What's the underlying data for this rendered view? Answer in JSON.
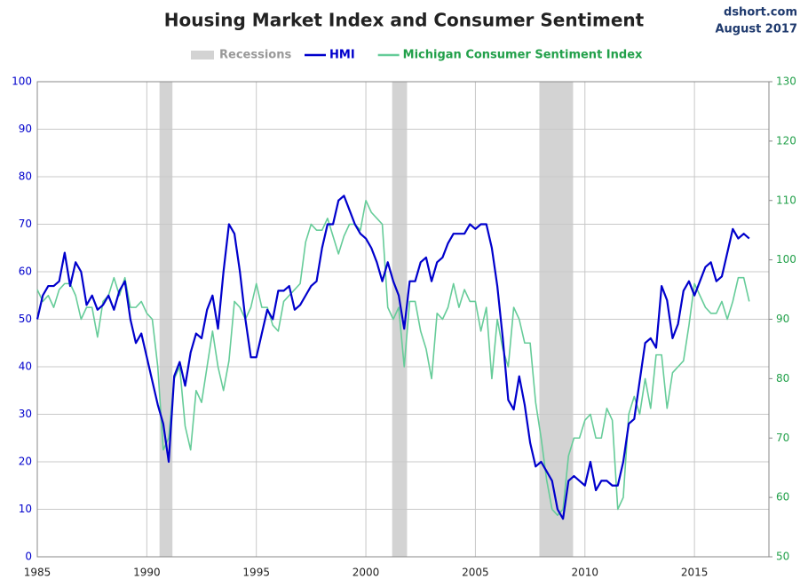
{
  "chart_data": {
    "type": "line",
    "title": "Housing Market Index and Consumer Sentiment",
    "source": "dshort.com",
    "date": "August 2017",
    "x": [
      1985,
      1985.25,
      1985.5,
      1985.75,
      1986,
      1986.25,
      1986.5,
      1986.75,
      1987,
      1987.25,
      1987.5,
      1987.75,
      1988,
      1988.25,
      1988.5,
      1988.75,
      1989,
      1989.25,
      1989.5,
      1989.75,
      1990,
      1990.25,
      1990.5,
      1990.75,
      1991,
      1991.25,
      1991.5,
      1991.75,
      1992,
      1992.25,
      1992.5,
      1992.75,
      1993,
      1993.25,
      1993.5,
      1993.75,
      1994,
      1994.25,
      1994.5,
      1994.75,
      1995,
      1995.25,
      1995.5,
      1995.75,
      1996,
      1996.25,
      1996.5,
      1996.75,
      1997,
      1997.25,
      1997.5,
      1997.75,
      1998,
      1998.25,
      1998.5,
      1998.75,
      1999,
      1999.25,
      1999.5,
      1999.75,
      2000,
      2000.25,
      2000.5,
      2000.75,
      2001,
      2001.25,
      2001.5,
      2001.75,
      2002,
      2002.25,
      2002.5,
      2002.75,
      2003,
      2003.25,
      2003.5,
      2003.75,
      2004,
      2004.25,
      2004.5,
      2004.75,
      2005,
      2005.25,
      2005.5,
      2005.75,
      2006,
      2006.25,
      2006.5,
      2006.75,
      2007,
      2007.25,
      2007.5,
      2007.75,
      2008,
      2008.25,
      2008.5,
      2008.75,
      2009,
      2009.25,
      2009.5,
      2009.75,
      2010,
      2010.25,
      2010.5,
      2010.75,
      2011,
      2011.25,
      2011.5,
      2011.75,
      2012,
      2012.25,
      2012.5,
      2012.75,
      2013,
      2013.25,
      2013.5,
      2013.75,
      2014,
      2014.25,
      2014.5,
      2014.75,
      2015,
      2015.25,
      2015.5,
      2015.75,
      2016,
      2016.25,
      2016.5,
      2016.75,
      2017,
      2017.25,
      2017.5
    ],
    "recessions": {
      "name": "Recessions",
      "color": "#d3d3d3",
      "spans": [
        [
          1990.58,
          1991.17
        ],
        [
          2001.2,
          2001.88
        ],
        [
          2007.92,
          2009.46
        ]
      ]
    },
    "series": [
      {
        "name": "HMI",
        "color": "#0000cc",
        "axis": "y",
        "values": [
          50,
          55,
          57,
          57,
          58,
          64,
          57,
          62,
          60,
          53,
          55,
          52,
          53,
          55,
          52,
          56,
          58,
          50,
          45,
          47,
          42,
          37,
          32,
          28,
          20,
          38,
          41,
          36,
          43,
          47,
          46,
          52,
          55,
          48,
          60,
          70,
          68,
          60,
          50,
          42,
          42,
          47,
          52,
          50,
          56,
          56,
          57,
          52,
          53,
          55,
          57,
          58,
          65,
          70,
          70,
          75,
          76,
          73,
          70,
          68,
          67,
          65,
          62,
          58,
          62,
          58,
          55,
          48,
          58,
          58,
          62,
          63,
          58,
          62,
          63,
          66,
          68,
          68,
          68,
          70,
          69,
          70,
          70,
          65,
          57,
          46,
          33,
          31,
          38,
          32,
          24,
          19,
          20,
          18,
          16,
          10,
          8,
          16,
          17,
          16,
          15,
          20,
          14,
          16,
          16,
          15,
          15,
          20,
          28,
          29,
          37,
          45,
          46,
          44,
          57,
          54,
          46,
          49,
          56,
          58,
          55,
          58,
          61,
          62,
          58,
          59,
          64,
          69,
          67,
          68,
          67
        ]
      },
      {
        "name": "Michigan Consumer Sentiment Index",
        "color": "#66cc99",
        "axis": "y2",
        "values": [
          95,
          93,
          94,
          92,
          95,
          96,
          96,
          94,
          90,
          92,
          92,
          87,
          93,
          94,
          97,
          94,
          97,
          92,
          92,
          93,
          91,
          90,
          82,
          68,
          70,
          80,
          82,
          72,
          68,
          78,
          76,
          82,
          88,
          82,
          78,
          83,
          93,
          92,
          90,
          92,
          96,
          92,
          92,
          89,
          88,
          93,
          94,
          95,
          96,
          103,
          106,
          105,
          105,
          107,
          104,
          101,
          104,
          106,
          106,
          105,
          110,
          108,
          107,
          106,
          92,
          90,
          92,
          82,
          93,
          93,
          88,
          85,
          80,
          91,
          90,
          92,
          96,
          92,
          95,
          93,
          93,
          88,
          92,
          80,
          90,
          85,
          82,
          92,
          90,
          86,
          86,
          76,
          70,
          63,
          58,
          57,
          58,
          67,
          70,
          70,
          73,
          74,
          70,
          70,
          75,
          73,
          58,
          60,
          74,
          77,
          74,
          80,
          75,
          84,
          84,
          75,
          81,
          82,
          83,
          89,
          96,
          94,
          92,
          91,
          91,
          93,
          90,
          93,
          97,
          97,
          93
        ]
      }
    ],
    "xlim": [
      1985,
      2018.4
    ],
    "xticks": [
      1985,
      1990,
      1995,
      2000,
      2005,
      2010,
      2015
    ],
    "ylim": [
      0,
      100
    ],
    "yticks": [
      0,
      10,
      20,
      30,
      40,
      50,
      60,
      70,
      80,
      90,
      100
    ],
    "y2lim": [
      50,
      130
    ],
    "y2ticks": [
      50,
      60,
      70,
      80,
      90,
      100,
      110,
      120,
      130
    ],
    "grid": true
  }
}
